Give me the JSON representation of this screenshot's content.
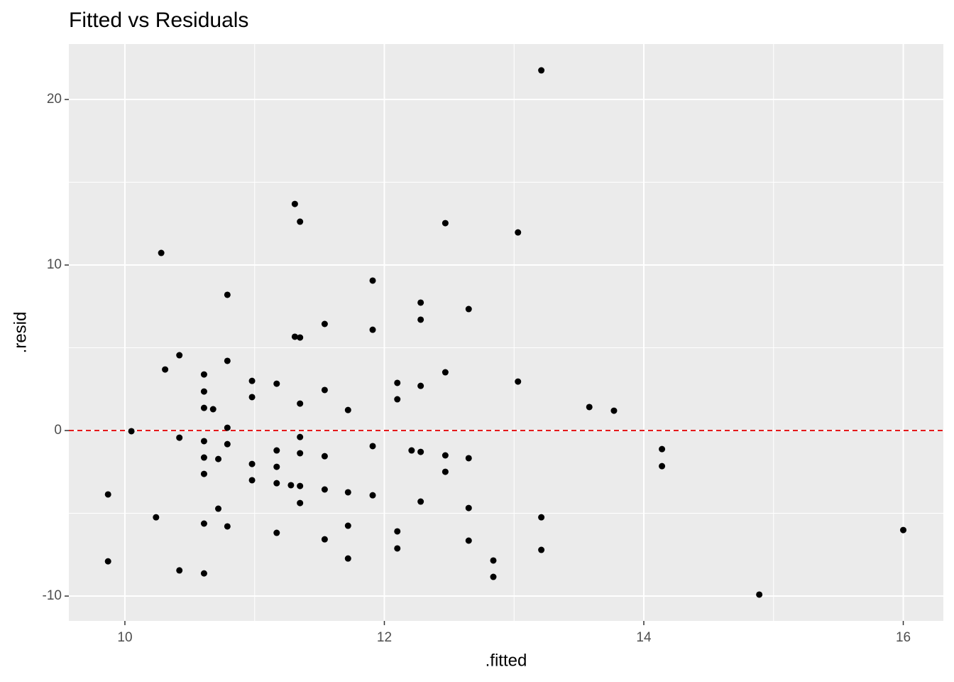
{
  "chart_data": {
    "type": "scatter",
    "title": "Fitted vs Residuals",
    "x_label": ".fitted",
    "y_label": ".resid",
    "xlim": [
      9.568,
      16.309
    ],
    "ylim": [
      -11.5,
      23.35
    ],
    "xticks": [
      10,
      12,
      14,
      16
    ],
    "yticks": [
      -10,
      0,
      10,
      20
    ],
    "xminor": [
      11,
      13,
      15
    ],
    "yminor": [
      -5,
      5,
      15
    ],
    "grid": true,
    "color": "#000000",
    "hline": {
      "y": 0,
      "color": "#e41a1c",
      "dashed": true
    },
    "x": [
      9.87,
      9.87,
      10.05,
      10.24,
      10.28,
      10.31,
      10.42,
      10.42,
      10.42,
      10.61,
      10.61,
      10.61,
      10.61,
      10.61,
      10.61,
      10.61,
      10.61,
      10.68,
      10.72,
      10.72,
      10.79,
      10.79,
      10.79,
      10.79,
      10.79,
      10.98,
      10.98,
      10.98,
      10.98,
      11.17,
      11.17,
      11.17,
      11.17,
      11.17,
      11.28,
      11.31,
      11.31,
      11.35,
      11.35,
      11.35,
      11.35,
      11.35,
      11.35,
      11.35,
      11.54,
      11.54,
      11.54,
      11.54,
      11.54,
      11.72,
      11.72,
      11.72,
      11.72,
      11.91,
      11.91,
      11.91,
      11.91,
      12.1,
      12.1,
      12.1,
      12.1,
      12.21,
      12.28,
      12.28,
      12.28,
      12.28,
      12.28,
      12.47,
      12.47,
      12.47,
      12.47,
      12.65,
      12.65,
      12.65,
      12.65,
      12.84,
      12.84,
      13.03,
      13.03,
      13.21,
      13.21,
      13.21,
      13.58,
      13.77,
      14.14,
      14.14,
      14.89,
      16.0
    ],
    "y": [
      -3.86,
      -7.9,
      -0.04,
      -5.24,
      10.73,
      3.69,
      4.55,
      -0.43,
      -8.45,
      3.39,
      2.36,
      1.37,
      -0.64,
      -1.63,
      -2.62,
      -5.62,
      -8.63,
      1.29,
      -1.72,
      -4.72,
      8.2,
      4.21,
      0.17,
      -0.82,
      -5.79,
      3.0,
      2.02,
      -2.02,
      -3.0,
      2.83,
      -1.2,
      -2.19,
      -3.18,
      -6.18,
      -3.3,
      13.69,
      5.67,
      12.62,
      5.62,
      1.63,
      -0.39,
      -1.37,
      -3.35,
      -4.38,
      6.44,
      2.45,
      -1.55,
      -3.56,
      -6.57,
      1.24,
      -3.73,
      -5.75,
      -7.73,
      9.06,
      6.09,
      -0.94,
      -3.91,
      2.88,
      1.89,
      -6.09,
      -7.12,
      -1.2,
      7.73,
      6.7,
      2.7,
      -1.29,
      -4.29,
      12.53,
      3.52,
      -1.5,
      -2.49,
      7.34,
      -1.67,
      -4.68,
      -6.65,
      -7.85,
      -8.84,
      11.97,
      2.96,
      21.76,
      -5.24,
      -7.21,
      1.42,
      1.2,
      -1.12,
      -2.15,
      -9.91,
      -6.01
    ]
  }
}
